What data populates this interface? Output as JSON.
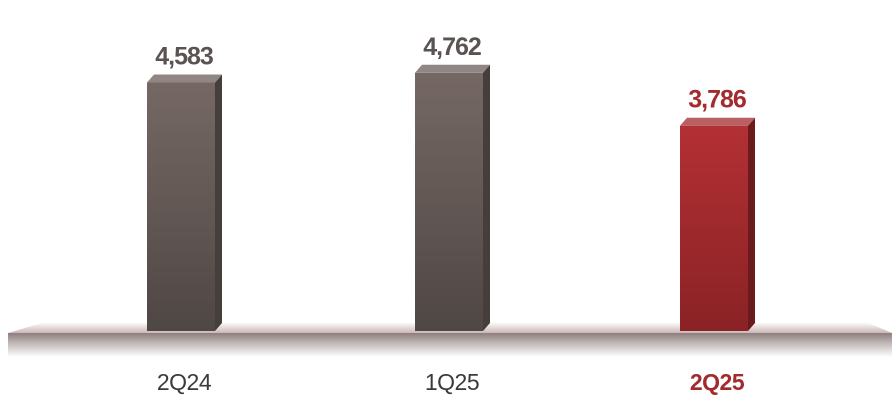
{
  "chart_data": {
    "type": "bar",
    "categories": [
      "2Q24",
      "1Q25",
      "2Q25"
    ],
    "values": [
      4583,
      4762,
      3786
    ],
    "value_labels": [
      "4,583",
      "4,762",
      "3,786"
    ],
    "highlight_index": 2,
    "ylim": [
      0,
      5000
    ],
    "grid": false,
    "legend": "none",
    "title": "",
    "xlabel": "",
    "ylabel": ""
  },
  "colors": {
    "bar_default": "#6b5f5b",
    "bar_highlight": "#a32a2d",
    "label_default": "#5a5352",
    "label_highlight": "#a32a2d",
    "category_default": "#3a3a3a"
  }
}
